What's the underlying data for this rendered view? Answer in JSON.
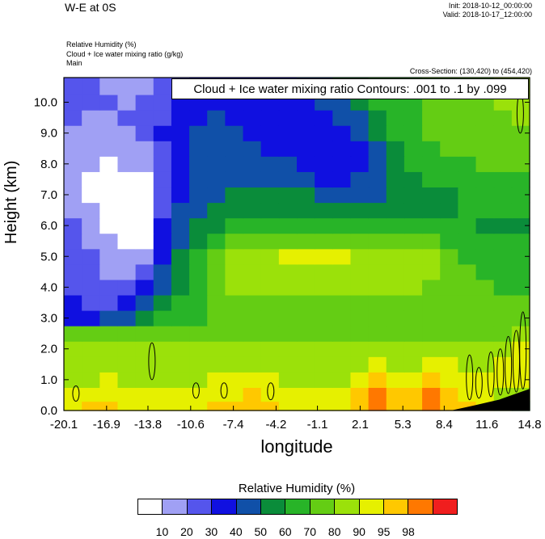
{
  "header": {
    "title": "W-E at 0S",
    "init": "Init: 2018-10-12_00:00:00",
    "valid": "Valid: 2018-10-17_12:00:00",
    "fields": [
      "Relative Humidity   (%)",
      "Cloud + Ice water mixing ratio   (g/kg)",
      "Main"
    ],
    "cross_section": "Cross-Section: (130,420) to (454,420)"
  },
  "chart_data": {
    "type": "heatmap",
    "title": "",
    "xlabel": "longitude",
    "ylabel": "Height (km)",
    "x_tick_labels": [
      "-20.1",
      "-16.9",
      "-13.8",
      "-10.6",
      "-7.4",
      "-4.2",
      "-1.1",
      "2.1",
      "5.3",
      "8.4",
      "11.6",
      "14.8"
    ],
    "y_tick_labels": [
      "0.0",
      "1.0",
      "2.0",
      "3.0",
      "4.0",
      "5.0",
      "6.0",
      "7.0",
      "8.0",
      "9.0",
      "10.0"
    ],
    "xlim": [
      -20.1,
      14.8
    ],
    "ylim": [
      0.0,
      10.8
    ],
    "contour_text": "Cloud + Ice water mixing ratio Contours: .001 to .1 by .099",
    "colorbar_title": "Relative Humidity  (%)",
    "colorbar_levels": [
      "10",
      "20",
      "30",
      "40",
      "50",
      "60",
      "70",
      "80",
      "90",
      "95",
      "98"
    ],
    "colorbar_colors": [
      "#ffffff",
      "#a0a0f4",
      "#5555ec",
      "#1010e0",
      "#1050a8",
      "#0a8c3a",
      "#28b428",
      "#64cd14",
      "#9be10a",
      "#e6f000",
      "#ffc800",
      "#ff7800",
      "#f01e1e"
    ],
    "rh_by_height_km": [
      {
        "z": 0.1,
        "values": [
          93,
          95,
          96,
          94,
          92,
          91,
          92,
          93,
          95,
          96,
          97,
          96,
          94,
          93,
          92,
          93,
          97,
          98,
          97,
          96,
          98,
          97,
          95,
          93,
          80,
          60
        ]
      },
      {
        "z": 0.5,
        "values": [
          90,
          91,
          93,
          92,
          90,
          90,
          91,
          92,
          93,
          94,
          95,
          94,
          92,
          91,
          91,
          93,
          96,
          98,
          97,
          96,
          98,
          97,
          94,
          92,
          88,
          80
        ]
      },
      {
        "z": 1.0,
        "values": [
          87,
          88,
          90,
          89,
          88,
          88,
          88,
          89,
          90,
          91,
          91,
          90,
          89,
          88,
          88,
          89,
          92,
          95,
          94,
          93,
          96,
          94,
          92,
          90,
          92,
          94
        ]
      },
      {
        "z": 1.5,
        "values": [
          85,
          86,
          88,
          87,
          86,
          85,
          85,
          86,
          87,
          88,
          88,
          87,
          86,
          85,
          85,
          86,
          88,
          90,
          89,
          88,
          92,
          90,
          89,
          88,
          90,
          93
        ]
      },
      {
        "z": 2.0,
        "values": [
          82,
          83,
          84,
          83,
          82,
          81,
          81,
          82,
          83,
          84,
          84,
          83,
          82,
          81,
          81,
          82,
          84,
          85,
          84,
          83,
          86,
          85,
          84,
          84,
          86,
          90
        ]
      },
      {
        "z": 2.5,
        "values": [
          70,
          72,
          74,
          74,
          73,
          72,
          72,
          73,
          75,
          76,
          77,
          76,
          75,
          74,
          74,
          75,
          76,
          77,
          76,
          75,
          77,
          76,
          76,
          76,
          78,
          83
        ]
      },
      {
        "z": 3.0,
        "values": [
          35,
          38,
          42,
          48,
          54,
          60,
          64,
          67,
          70,
          72,
          74,
          74,
          73,
          72,
          72,
          73,
          74,
          75,
          74,
          74,
          75,
          74,
          73,
          73,
          74,
          77
        ]
      },
      {
        "z": 3.5,
        "values": [
          30,
          28,
          25,
          30,
          40,
          52,
          60,
          66,
          72,
          76,
          78,
          79,
          78,
          77,
          77,
          78,
          79,
          79,
          78,
          77,
          76,
          74,
          72,
          71,
          71,
          72
        ]
      },
      {
        "z": 4.0,
        "values": [
          28,
          25,
          22,
          22,
          30,
          45,
          56,
          66,
          74,
          80,
          83,
          84,
          84,
          83,
          83,
          84,
          85,
          85,
          84,
          82,
          79,
          75,
          72,
          70,
          69,
          69
        ]
      },
      {
        "z": 4.5,
        "values": [
          26,
          22,
          18,
          15,
          22,
          40,
          52,
          64,
          76,
          84,
          87,
          88,
          88,
          88,
          88,
          89,
          89,
          88,
          86,
          84,
          80,
          75,
          71,
          68,
          66,
          66
        ]
      },
      {
        "z": 5.0,
        "values": [
          24,
          20,
          15,
          10,
          12,
          38,
          50,
          62,
          74,
          83,
          88,
          89,
          90,
          91,
          90,
          90,
          89,
          88,
          86,
          84,
          80,
          74,
          69,
          66,
          64,
          63
        ]
      },
      {
        "z": 5.5,
        "values": [
          24,
          18,
          12,
          8,
          8,
          36,
          48,
          58,
          66,
          72,
          76,
          78,
          78,
          78,
          78,
          78,
          78,
          78,
          77,
          76,
          73,
          69,
          65,
          62,
          60,
          60
        ]
      },
      {
        "z": 6.0,
        "values": [
          20,
          14,
          8,
          6,
          6,
          30,
          44,
          52,
          58,
          62,
          64,
          65,
          65,
          64,
          64,
          64,
          64,
          64,
          63,
          62,
          62,
          61,
          60,
          59,
          58,
          58
        ]
      },
      {
        "z": 6.5,
        "values": [
          15,
          10,
          6,
          5,
          5,
          20,
          40,
          46,
          52,
          55,
          57,
          58,
          57,
          56,
          56,
          56,
          56,
          56,
          57,
          57,
          58,
          59,
          60,
          60,
          60,
          62
        ]
      },
      {
        "z": 7.0,
        "values": [
          10,
          8,
          5,
          5,
          6,
          20,
          38,
          44,
          48,
          50,
          52,
          52,
          51,
          50,
          48,
          48,
          48,
          49,
          52,
          54,
          56,
          58,
          60,
          62,
          63,
          65
        ]
      },
      {
        "z": 7.5,
        "values": [
          10,
          8,
          6,
          6,
          8,
          22,
          38,
          42,
          44,
          46,
          47,
          47,
          45,
          42,
          38,
          38,
          42,
          48,
          53,
          56,
          60,
          63,
          65,
          66,
          67,
          68
        ]
      },
      {
        "z": 8.0,
        "values": [
          12,
          10,
          9,
          10,
          14,
          26,
          38,
          40,
          42,
          42,
          43,
          42,
          40,
          36,
          32,
          32,
          38,
          46,
          54,
          60,
          64,
          67,
          69,
          70,
          71,
          72
        ]
      },
      {
        "z": 8.5,
        "values": [
          14,
          12,
          12,
          14,
          18,
          28,
          38,
          40,
          40,
          40,
          40,
          38,
          36,
          32,
          30,
          32,
          38,
          48,
          58,
          64,
          68,
          70,
          72,
          73,
          74,
          75
        ]
      },
      {
        "z": 9.0,
        "values": [
          16,
          15,
          15,
          18,
          24,
          30,
          38,
          42,
          42,
          40,
          38,
          36,
          34,
          32,
          32,
          34,
          40,
          50,
          60,
          66,
          70,
          72,
          74,
          75,
          76,
          78
        ]
      },
      {
        "z": 9.5,
        "values": [
          20,
          18,
          18,
          20,
          24,
          28,
          34,
          38,
          40,
          38,
          36,
          35,
          34,
          34,
          36,
          40,
          46,
          56,
          62,
          67,
          70,
          73,
          75,
          76,
          78,
          80
        ]
      },
      {
        "z": 10.0,
        "values": [
          25,
          22,
          20,
          18,
          20,
          24,
          30,
          34,
          36,
          36,
          36,
          36,
          36,
          38,
          42,
          48,
          54,
          60,
          64,
          68,
          71,
          74,
          76,
          78,
          80,
          83
        ]
      },
      {
        "z": 10.5,
        "values": [
          28,
          22,
          18,
          14,
          15,
          20,
          26,
          30,
          32,
          34,
          35,
          36,
          38,
          42,
          48,
          54,
          58,
          62,
          66,
          69,
          72,
          75,
          77,
          79,
          81,
          85
        ]
      }
    ],
    "terrain_km": [
      {
        "lon": 8.9,
        "z": 0.0
      },
      {
        "lon": 10.5,
        "z": 0.15
      },
      {
        "lon": 12.5,
        "z": 0.35
      },
      {
        "lon": 13.8,
        "z": 0.55
      },
      {
        "lon": 14.8,
        "z": 0.7
      }
    ],
    "cloud_contours": [
      {
        "lon": 10.3,
        "z0": 0.35,
        "z1": 1.8
      },
      {
        "lon": 11.0,
        "z0": 0.4,
        "z1": 1.4
      },
      {
        "lon": 11.9,
        "z0": 0.45,
        "z1": 1.9
      },
      {
        "lon": 12.6,
        "z0": 0.5,
        "z1": 2.0
      },
      {
        "lon": 13.2,
        "z0": 0.55,
        "z1": 2.4
      },
      {
        "lon": 13.8,
        "z0": 0.6,
        "z1": 2.6
      },
      {
        "lon": 14.3,
        "z0": 0.7,
        "z1": 3.2
      },
      {
        "lon": -13.5,
        "z0": 1.0,
        "z1": 2.2
      },
      {
        "lon": -19.2,
        "z0": 0.3,
        "z1": 0.8
      },
      {
        "lon": -10.2,
        "z0": 0.4,
        "z1": 0.9
      },
      {
        "lon": -8.1,
        "z0": 0.4,
        "z1": 0.9
      },
      {
        "lon": -4.6,
        "z0": 0.35,
        "z1": 0.9
      },
      {
        "lon": 14.1,
        "z0": 9.0,
        "z1": 10.3
      }
    ]
  }
}
